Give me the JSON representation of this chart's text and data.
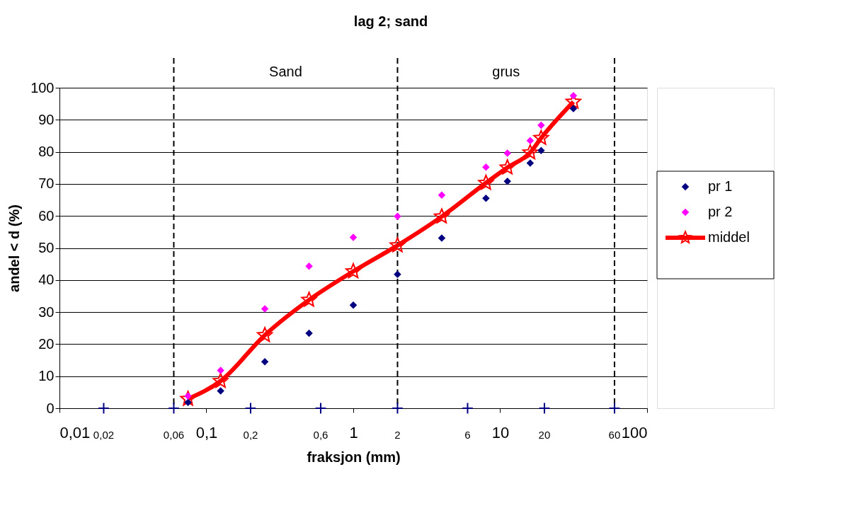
{
  "chart_data": {
    "type": "scatter",
    "title": "lag 2; sand",
    "xlabel": "fraksjon (mm)",
    "ylabel": "andel < d (%)",
    "log": "x",
    "xlim": [
      0.01,
      100
    ],
    "xticks": [
      {
        "value": 0.01,
        "label": "0,01"
      },
      {
        "value": 0.1,
        "label": "0,1"
      },
      1,
      10,
      100
    ],
    "ylim": [
      0,
      100
    ],
    "yticks": [
      0,
      10,
      20,
      30,
      40,
      50,
      60,
      70,
      80,
      90,
      100
    ],
    "grid": "y",
    "legend": "right",
    "series": [
      {
        "name": "pr 1",
        "marker": "diamond",
        "color": "#000080",
        "x": [
          0.075,
          0.125,
          0.25,
          0.5,
          1,
          2,
          4,
          8,
          11.2,
          16,
          19,
          31.5
        ],
        "values": [
          1.8,
          5.4,
          14.5,
          23.4,
          32.2,
          41.8,
          53.1,
          65.5,
          70.8,
          76.5,
          80.4,
          93.5
        ]
      },
      {
        "name": "pr 2",
        "marker": "diamond",
        "color": "#ff00ff",
        "x": [
          0.075,
          0.125,
          0.25,
          0.5,
          1,
          2,
          4,
          8,
          11.2,
          16,
          19,
          31.5
        ],
        "values": [
          3.8,
          11.8,
          31.0,
          44.3,
          53.3,
          59.9,
          66.5,
          75.2,
          79.6,
          83.5,
          88.3,
          97.5
        ]
      },
      {
        "name": "middel",
        "type": "line",
        "marker": "star",
        "line_style": "solid",
        "color": "#ff0000",
        "x": [
          0.075,
          0.125,
          0.25,
          0.5,
          1,
          2,
          4,
          8,
          11.2,
          16,
          19,
          31.5
        ],
        "values": [
          2.9,
          8.5,
          22.8,
          33.8,
          42.7,
          50.8,
          59.8,
          70.3,
          75.1,
          79.8,
          84.3,
          95.6
        ]
      },
      {
        "marker": "cross",
        "color": "#000080",
        "x": [
          0.02,
          0.06,
          0.2,
          0.6,
          2,
          6,
          20,
          60
        ],
        "values": [
          0,
          0,
          0,
          0,
          0,
          0,
          0,
          0
        ]
      }
    ],
    "ref_lines": [
      {
        "axis": "x",
        "value": 0.06,
        "color": "#000000",
        "line_style": "dashed"
      },
      {
        "axis": "x",
        "value": 2,
        "color": "#000000",
        "line_style": "dashed"
      },
      {
        "axis": "x",
        "value": 60,
        "color": "#000000",
        "line_style": "dashed"
      }
    ],
    "annotations": [
      "Sand",
      "grus",
      {
        "text": "0,02",
        "x": 0.02,
        "y": 0
      },
      {
        "text": "0,06",
        "x": 0.06,
        "y": 0
      },
      {
        "text": "0,2",
        "x": 0.2,
        "y": 0
      },
      {
        "text": "0,6",
        "x": 0.6,
        "y": 0
      },
      {
        "text": "2",
        "x": 2,
        "y": 0
      },
      {
        "text": "6",
        "x": 6,
        "y": 0
      },
      {
        "text": "20",
        "x": 20,
        "y": 0
      },
      {
        "text": "60",
        "x": 60,
        "y": 0
      }
    ]
  }
}
